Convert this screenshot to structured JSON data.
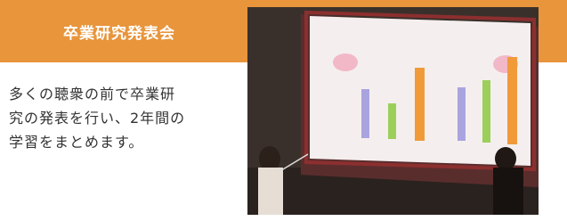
{
  "header": {
    "title": "卒業研究発表会"
  },
  "body": {
    "lines": [
      "多くの聴衆の前で卒業研",
      "究の発表を行い、2年間の",
      "学習をまとめます。"
    ]
  }
}
